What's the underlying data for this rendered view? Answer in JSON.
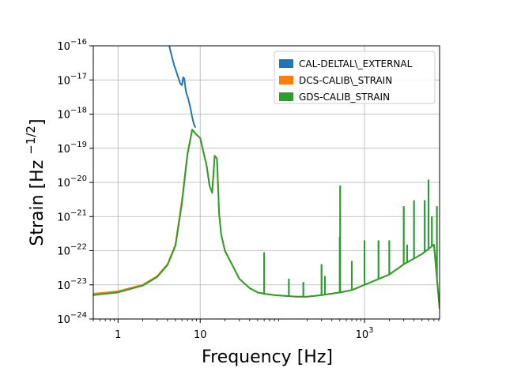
{
  "chart_data": {
    "type": "line",
    "title": "",
    "xlabel": "Frequency [Hz]",
    "ylabel": "Strain [Hz ⁻¹ᐟ²]",
    "ylabel_parts": {
      "main": "Strain [Hz ",
      "exp": "−1/2",
      "close": "]"
    },
    "x_scale": "log",
    "y_scale": "log",
    "xlim": [
      0.5,
      8192
    ],
    "ylim": [
      1e-24,
      1e-16
    ],
    "grid": true,
    "legend_position": "top-right",
    "x_ticks": [
      {
        "value": 1,
        "label": "1"
      },
      {
        "value": 10,
        "label": "10"
      },
      {
        "value": 1000,
        "label": "10",
        "sup": "3"
      }
    ],
    "y_ticks": [
      {
        "value": 1e-24,
        "label": "10",
        "sup": "−24"
      },
      {
        "value": 1e-23,
        "label": "10",
        "sup": "−23"
      },
      {
        "value": 1e-22,
        "label": "10",
        "sup": "−22"
      },
      {
        "value": 1e-21,
        "label": "10",
        "sup": "−21"
      },
      {
        "value": 1e-20,
        "label": "10",
        "sup": "−20"
      },
      {
        "value": 1e-19,
        "label": "10",
        "sup": "−19"
      },
      {
        "value": 1e-18,
        "label": "10",
        "sup": "−18"
      },
      {
        "value": 1e-17,
        "label": "10",
        "sup": "−17"
      },
      {
        "value": 1e-16,
        "label": "10",
        "sup": "−16"
      }
    ],
    "series": [
      {
        "name": "CAL-DELTAL\\_EXTERNAL",
        "color": "#1f77b4",
        "x": [
          4.2,
          4.5,
          4.8,
          5.1,
          5.4,
          5.7,
          6.0,
          6.2,
          6.4,
          6.6,
          6.8,
          7.1,
          7.4,
          7.7,
          8.0,
          8.4,
          8.8
        ],
        "y": [
          1e-16,
          5e-17,
          2.8e-17,
          1.8e-17,
          1.2e-17,
          8e-18,
          7e-18,
          1.2e-17,
          1.1e-17,
          6e-18,
          4e-18,
          3e-18,
          2e-18,
          1.3e-18,
          8e-19,
          5e-19,
          4e-19
        ]
      },
      {
        "name": "DCS-CALIB\\_STRAIN",
        "color": "#ff7f0e",
        "x": [
          0.5,
          1,
          2,
          3,
          4,
          5,
          6,
          7,
          8,
          9,
          10,
          12,
          13,
          14,
          15,
          16,
          17,
          18,
          20,
          25,
          30,
          40,
          50,
          60,
          80,
          100,
          150,
          200,
          300,
          500,
          700,
          1000,
          2000,
          3000,
          5000,
          7000,
          8192
        ],
        "y": [
          5.5e-24,
          6.5e-24,
          1e-23,
          1.8e-23,
          4e-23,
          1.5e-22,
          3e-21,
          7e-20,
          3.5e-19,
          2.5e-19,
          2e-19,
          3e-20,
          8e-21,
          5e-21,
          6e-20,
          5e-20,
          1.2e-21,
          3e-22,
          1e-22,
          3.5e-23,
          1.5e-23,
          8e-24,
          6e-24,
          5.5e-24,
          5e-24,
          4.8e-24,
          4.5e-24,
          4.5e-24,
          5e-24,
          6e-24,
          7e-24,
          1e-23,
          2e-23,
          4e-23,
          8e-23,
          1.5e-22,
          2e-24
        ]
      },
      {
        "name": "GDS-CALIB_STRAIN",
        "color": "#2ca02c",
        "x": [
          0.5,
          1,
          2,
          3,
          4,
          5,
          6,
          7,
          8,
          9,
          10,
          12,
          13,
          14,
          15,
          16,
          17,
          18,
          20,
          25,
          30,
          40,
          50,
          60,
          80,
          100,
          150,
          200,
          300,
          500,
          700,
          1000,
          2000,
          3000,
          5000,
          7000,
          8192
        ],
        "y": [
          5e-24,
          6e-24,
          9.5e-24,
          1.7e-23,
          3.8e-23,
          1.4e-22,
          2.5e-21,
          6.5e-20,
          3.5e-19,
          2.5e-19,
          2e-19,
          3e-20,
          8e-21,
          5e-21,
          6e-20,
          5e-20,
          1.2e-21,
          3e-22,
          1e-22,
          3.5e-23,
          1.5e-23,
          8e-24,
          6e-24,
          5.5e-24,
          5e-24,
          4.8e-24,
          4.5e-24,
          4.5e-24,
          5e-24,
          6e-24,
          7e-24,
          1e-23,
          2e-23,
          4e-23,
          8e-23,
          1.5e-22,
          2e-24
        ]
      }
    ],
    "spikes": [
      {
        "x": 60,
        "y": 9e-23
      },
      {
        "x": 120,
        "y": 1.5e-23
      },
      {
        "x": 180,
        "y": 1.2e-23
      },
      {
        "x": 300,
        "y": 4e-23
      },
      {
        "x": 330,
        "y": 1.8e-23
      },
      {
        "x": 500,
        "y": 2.5e-22
      },
      {
        "x": 505,
        "y": 8e-21
      },
      {
        "x": 700,
        "y": 5e-23
      },
      {
        "x": 1000,
        "y": 2e-22
      },
      {
        "x": 1480,
        "y": 2e-22
      },
      {
        "x": 2000,
        "y": 2e-22
      },
      {
        "x": 3000,
        "y": 2e-21
      },
      {
        "x": 3300,
        "y": 1.5e-22
      },
      {
        "x": 4000,
        "y": 3e-21
      },
      {
        "x": 5400,
        "y": 3e-21
      },
      {
        "x": 6000,
        "y": 1.2e-20
      },
      {
        "x": 6600,
        "y": 1e-21
      },
      {
        "x": 7600,
        "y": 2e-21
      }
    ]
  }
}
